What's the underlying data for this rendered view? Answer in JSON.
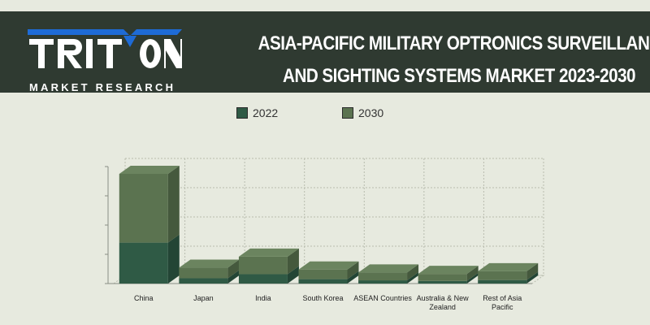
{
  "brand": {
    "name": "TRITON",
    "subtitle": "MARKET RESEARCH"
  },
  "title": {
    "line1": "ASIA-PACIFIC MILITARY OPTRONICS SURVEILLANCE",
    "line2": "AND SIGHTING SYSTEMS  MARKET 2023-2030"
  },
  "colors": {
    "header_bg": "#2f3a31",
    "series_2022": "#2f5a45",
    "series_2030": "#5b7350",
    "logo_blue": "#1e6bd6"
  },
  "chart_data": {
    "type": "bar",
    "stacked": true,
    "three_d": true,
    "categories": [
      "China",
      "Japan",
      "India",
      "South Korea",
      "ASEAN Countries",
      "Australia & New Zealand",
      "Rest of Asia Pacific"
    ],
    "series": [
      {
        "name": "2022",
        "values": [
          1.4,
          0.18,
          0.32,
          0.15,
          0.11,
          0.09,
          0.12
        ]
      },
      {
        "name": "2030",
        "values": [
          2.35,
          0.36,
          0.6,
          0.33,
          0.27,
          0.24,
          0.3
        ]
      }
    ],
    "ylim": [
      0,
      4
    ],
    "y_ticks": 5,
    "grid": true,
    "legend_position": "top-center"
  }
}
